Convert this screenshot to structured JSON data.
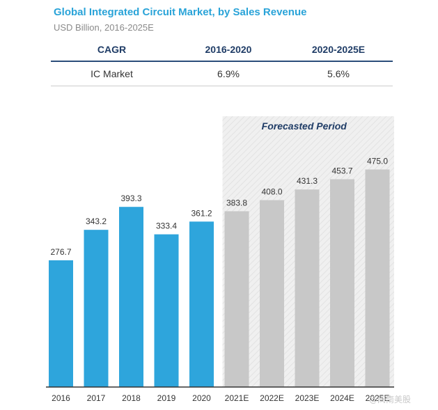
{
  "header": {
    "title": "Global Integrated Circuit Market, by Sales Revenue",
    "subtitle": "USD Billion, 2016-2025E"
  },
  "cagr_table": {
    "columns": [
      "CAGR",
      "2016-2020",
      "2020-2025E"
    ],
    "rows": [
      [
        "IC Market",
        "6.9%",
        "5.6%"
      ]
    ]
  },
  "chart_data": {
    "type": "bar",
    "title": "Global Integrated Circuit Market, by Sales Revenue",
    "subtitle": "USD Billion, 2016-2025E",
    "categories": [
      "2016",
      "2017",
      "2018",
      "2019",
      "2020",
      "2021E",
      "2022E",
      "2023E",
      "2024E",
      "2025E"
    ],
    "values": [
      276.7,
      343.2,
      393.3,
      333.4,
      361.2,
      383.8,
      408.0,
      431.3,
      453.7,
      475.0
    ],
    "value_labels": [
      "276.7",
      "343.2",
      "393.3",
      "333.4",
      "361.2",
      "383.8",
      "408.0",
      "431.3",
      "453.7",
      "475.0"
    ],
    "forecast": [
      false,
      false,
      false,
      false,
      false,
      true,
      true,
      true,
      true,
      true
    ],
    "forecast_label": "Forecasted Period",
    "ylim": [
      0,
      520
    ],
    "grid": false,
    "xlabel": "",
    "ylabel": "",
    "colors": {
      "actual": "#2ea5dc",
      "forecast": "#c8c8c8",
      "forecast_band": "#eeeeee",
      "axis": "#333333"
    }
  },
  "watermark": "@闽南美股"
}
